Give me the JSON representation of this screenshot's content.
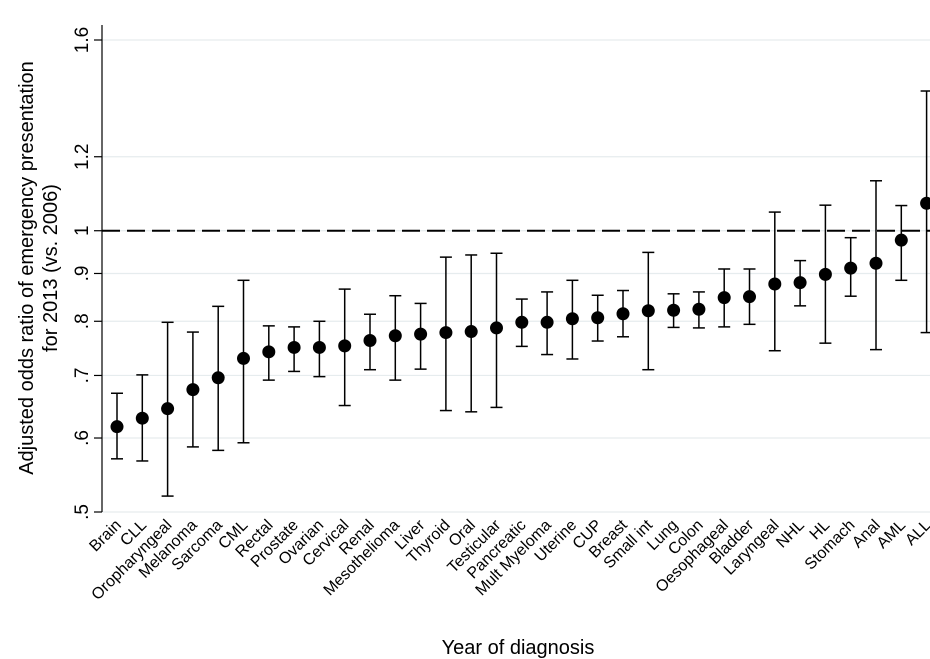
{
  "chart_data": {
    "type": "scatter",
    "xlabel": "Year of diagnosis",
    "ylabel_line1": "Adjusted odds ratio of emergency presentation",
    "ylabel_line2": "for 2013 (vs. 2006)",
    "y_scale": "log",
    "ylim": [
      0.5,
      1.6
    ],
    "yticks": [
      {
        "value": 0.5,
        "label": ".5"
      },
      {
        "value": 0.6,
        "label": ".6"
      },
      {
        "value": 0.7,
        "label": ".7"
      },
      {
        "value": 0.8,
        "label": ".8"
      },
      {
        "value": 0.9,
        "label": ".9"
      },
      {
        "value": 1.0,
        "label": "1"
      },
      {
        "value": 1.2,
        "label": "1.2"
      },
      {
        "value": 1.6,
        "label": "1.6"
      }
    ],
    "grid": true,
    "reference_line": {
      "value": 1.0,
      "style": "dashed"
    },
    "categories": [
      "Brain",
      "CLL",
      "Oropharyngeal",
      "Melanoma",
      "Sarcoma",
      "CML",
      "Rectal",
      "Prostate",
      "Ovarian",
      "Cervical",
      "Renal",
      "Mesothelioma",
      "Liver",
      "Thyroid",
      "Oral",
      "Testicular",
      "Pancreatic",
      "Mult Myeloma",
      "Uterine",
      "CUP",
      "Breast",
      "Small int",
      "Lung",
      "Colon",
      "Oesophageal",
      "Bladder",
      "Laryngeal",
      "NHL",
      "HL",
      "Stomach",
      "Anal",
      "AML",
      "ALL"
    ],
    "estimate": [
      0.617,
      0.63,
      0.645,
      0.676,
      0.696,
      0.73,
      0.742,
      0.75,
      0.75,
      0.753,
      0.763,
      0.772,
      0.775,
      0.778,
      0.78,
      0.787,
      0.798,
      0.798,
      0.805,
      0.807,
      0.815,
      0.821,
      0.822,
      0.824,
      0.848,
      0.85,
      0.877,
      0.88,
      0.898,
      0.912,
      0.923,
      0.977,
      1.07
    ],
    "lower": [
      0.57,
      0.567,
      0.52,
      0.587,
      0.582,
      0.593,
      0.692,
      0.707,
      0.698,
      0.65,
      0.71,
      0.692,
      0.711,
      0.642,
      0.64,
      0.647,
      0.752,
      0.737,
      0.729,
      0.762,
      0.77,
      0.71,
      0.788,
      0.787,
      0.789,
      0.794,
      0.744,
      0.831,
      0.758,
      0.851,
      0.746,
      0.885,
      0.778
    ],
    "upper": [
      0.67,
      0.701,
      0.798,
      0.779,
      0.83,
      0.885,
      0.791,
      0.789,
      0.8,
      0.866,
      0.814,
      0.852,
      0.836,
      0.937,
      0.942,
      0.946,
      0.845,
      0.86,
      0.885,
      0.853,
      0.863,
      0.948,
      0.856,
      0.86,
      0.91,
      0.91,
      1.047,
      0.929,
      1.065,
      0.983,
      1.131,
      1.064,
      1.411
    ]
  }
}
